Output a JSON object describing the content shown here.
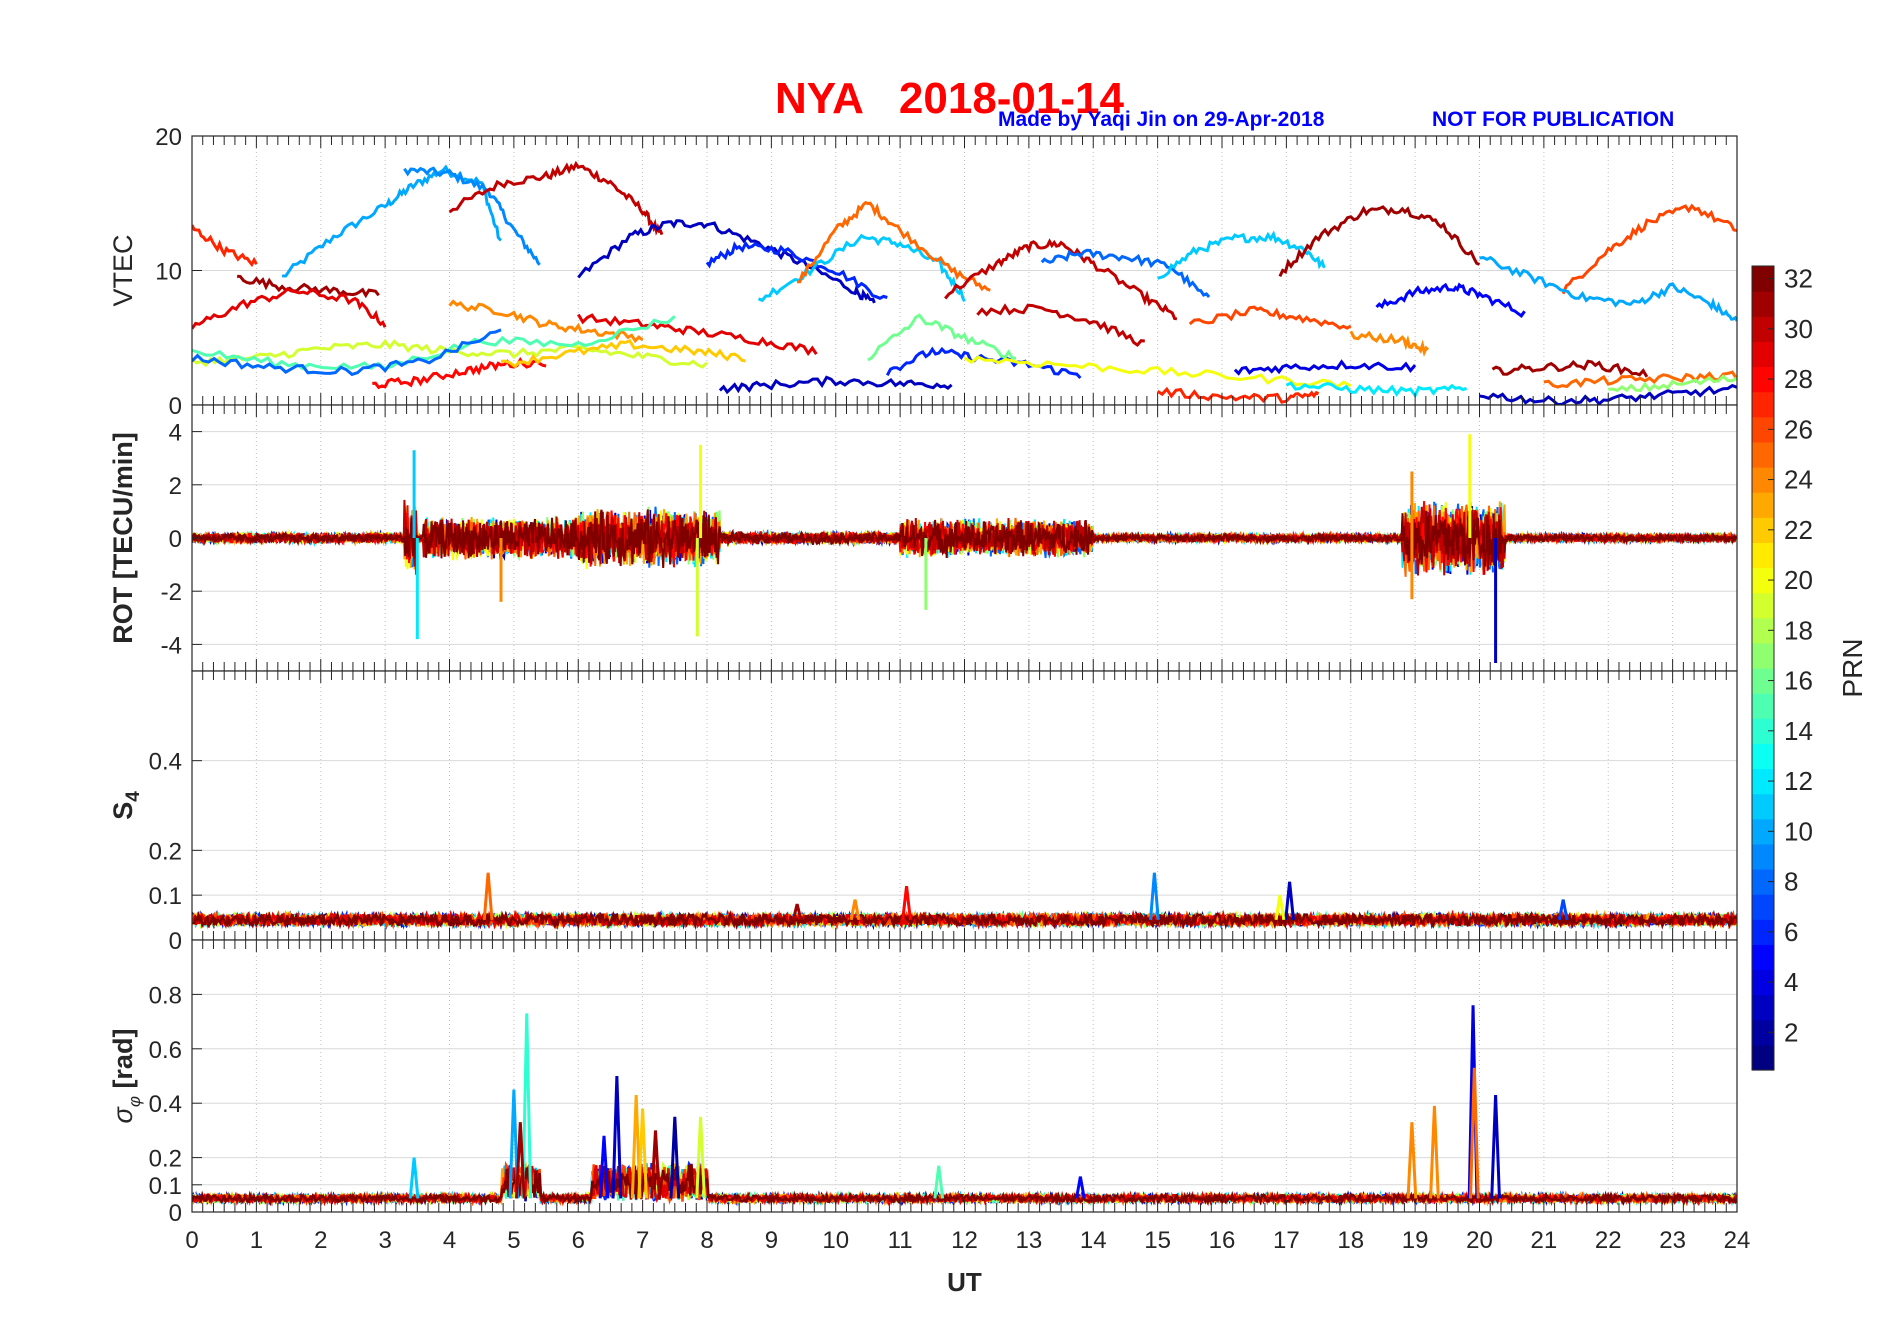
{
  "figure": {
    "title": "NYA   2018-01-14",
    "credit": "Made by Yaqi Jin on 29-Apr-2018",
    "notice": "NOT FOR PUBLICATION"
  },
  "colors": {
    "title": "#ff0000",
    "credit": "#0000ff",
    "axis": "#262626",
    "grid": "#d9d9d9"
  },
  "chart_data": [
    {
      "type": "line",
      "ylabel": "VTEC",
      "xlim": [
        0,
        24
      ],
      "ylim": [
        0,
        20
      ],
      "yticks": [
        0,
        10,
        20
      ],
      "grid": "vertical dotted",
      "series_note": "one trace per PRN, colored by PRN",
      "series": [
        {
          "prn": 10,
          "x": [
            1.4,
            2.2,
            3.0,
            3.4,
            3.9,
            4.5,
            4.8
          ],
          "y": [
            9.5,
            12.5,
            14.8,
            16.2,
            17.5,
            16.5,
            12
          ]
        },
        {
          "prn": 9,
          "x": [
            3.3,
            4.0,
            4.6,
            5.0,
            5.4
          ],
          "y": [
            17.5,
            17.2,
            16,
            13,
            10.5
          ]
        },
        {
          "prn": 30,
          "x": [
            4.0,
            4.8,
            5.5,
            6.0,
            6.5,
            7.0,
            7.3
          ],
          "y": [
            14.5,
            16.5,
            17,
            17.8,
            16.5,
            14.5,
            12.5
          ]
        },
        {
          "prn": 3,
          "x": [
            6.0,
            6.8,
            7.4,
            8.0,
            8.8,
            9.5,
            10.3,
            10.6
          ],
          "y": [
            9.5,
            12.5,
            13.5,
            13.5,
            12,
            10.5,
            8.5,
            7.5
          ]
        },
        {
          "prn": 6,
          "x": [
            8.0,
            8.5,
            9.2,
            10.0,
            10.8
          ],
          "y": [
            10.5,
            11.8,
            11.5,
            10,
            7.8
          ]
        },
        {
          "prn": 11,
          "x": [
            8.8,
            9.6,
            10.4,
            11.0,
            11.6,
            12.0
          ],
          "y": [
            7.8,
            10,
            12.5,
            12,
            10.5,
            8
          ]
        },
        {
          "prn": 25,
          "x": [
            9.4,
            10.0,
            10.5,
            11.0,
            11.8,
            12.4
          ],
          "y": [
            9,
            13,
            15,
            13,
            10,
            8.5
          ]
        },
        {
          "prn": 30,
          "x": [
            11.7,
            12.5,
            13.0,
            13.5,
            14.0,
            14.8,
            15.3
          ],
          "y": [
            8.2,
            10.5,
            11.8,
            12,
            10.5,
            8,
            6.5
          ]
        },
        {
          "prn": 8,
          "x": [
            13.2,
            13.8,
            14.5,
            15.2,
            15.8
          ],
          "y": [
            10.5,
            11.3,
            11,
            10.3,
            7.8
          ]
        },
        {
          "prn": 11,
          "x": [
            15.0,
            15.6,
            16.2,
            16.8,
            17.3,
            17.6
          ],
          "y": [
            9.5,
            11.5,
            12.4,
            12.5,
            11.5,
            10.2
          ]
        },
        {
          "prn": 31,
          "x": [
            16.9,
            17.5,
            18.2,
            18.8,
            19.4,
            20.0
          ],
          "y": [
            9.8,
            12.5,
            14.4,
            14.6,
            13.5,
            10.5
          ]
        },
        {
          "prn": 5,
          "x": [
            18.4,
            19.0,
            19.6,
            20.0,
            20.7
          ],
          "y": [
            7.2,
            8.4,
            8.8,
            8.2,
            6.8
          ]
        },
        {
          "prn": 26,
          "x": [
            21.3,
            22.0,
            22.6,
            23.3,
            24.0
          ],
          "y": [
            8.5,
            11.5,
            13.5,
            14.8,
            13.0
          ]
        },
        {
          "prn": 10,
          "x": [
            20.0,
            20.8,
            21.6,
            22.4,
            23.0,
            23.6,
            24.0
          ],
          "y": [
            11,
            9.5,
            8,
            7.5,
            8.8,
            7.5,
            6.2
          ]
        },
        {
          "prn": 27,
          "x": [
            0.0,
            0.5,
            1.0
          ],
          "y": [
            13.2,
            11.5,
            10.5
          ]
        },
        {
          "prn": 31,
          "x": [
            0.7,
            1.4,
            2.2,
            2.9
          ],
          "y": [
            9.5,
            8.8,
            8.5,
            8.2
          ]
        },
        {
          "prn": 29,
          "x": [
            0.0,
            0.8,
            1.6,
            2.5,
            3.0
          ],
          "y": [
            5.8,
            7.5,
            8.5,
            7.8,
            6.0
          ]
        },
        {
          "prn": 24,
          "x": [
            4.0,
            4.8,
            5.5,
            6.2,
            7.0
          ],
          "y": [
            7.5,
            7.0,
            6.0,
            5.5,
            5.0
          ]
        },
        {
          "prn": 29,
          "x": [
            6.0,
            7.0,
            7.8,
            8.8,
            9.7
          ],
          "y": [
            6.5,
            6.0,
            5.5,
            4.8,
            4.0
          ]
        },
        {
          "prn": 30,
          "x": [
            12.2,
            13.2,
            14.0,
            14.8
          ],
          "y": [
            7.0,
            7.2,
            6.2,
            4.5
          ]
        },
        {
          "prn": 26,
          "x": [
            15.5,
            16.5,
            17.2,
            18.0
          ],
          "y": [
            6.0,
            7.0,
            6.5,
            5.8
          ]
        },
        {
          "prn": 24,
          "x": [
            18.0,
            18.8,
            19.2
          ],
          "y": [
            5.2,
            4.8,
            4.0
          ]
        },
        {
          "prn": 19,
          "x": [
            0.0,
            1.0,
            2.0,
            3.0,
            4.0,
            5.0,
            6.0,
            7.0,
            8.0
          ],
          "y": [
            3.2,
            3.5,
            4.2,
            4.5,
            4.0,
            3.8,
            4.2,
            3.6,
            3.0
          ]
        },
        {
          "prn": 15,
          "x": [
            0.0,
            1.5,
            3.0,
            4.5,
            6.0,
            7.5
          ],
          "y": [
            4.0,
            3.0,
            2.8,
            4.8,
            4.5,
            6.5
          ]
        },
        {
          "prn": 8,
          "x": [
            0.0,
            1.2,
            2.4,
            3.6,
            4.8
          ],
          "y": [
            3.5,
            2.8,
            2.5,
            3.2,
            5.5
          ]
        },
        {
          "prn": 28,
          "x": [
            2.8,
            3.5,
            4.2,
            4.8,
            5.5
          ],
          "y": [
            1.5,
            1.8,
            2.5,
            3.0,
            3.2
          ]
        },
        {
          "prn": 22,
          "x": [
            4.8,
            5.8,
            6.8,
            7.8,
            8.6
          ],
          "y": [
            3.0,
            3.8,
            4.5,
            4.0,
            3.5
          ]
        },
        {
          "prn": 3,
          "x": [
            8.2,
            9.0,
            10.0,
            11.0,
            11.8
          ],
          "y": [
            1.2,
            1.5,
            1.8,
            1.6,
            1.5
          ]
        },
        {
          "prn": 6,
          "x": [
            10.8,
            11.5,
            12.2,
            13.0,
            13.8
          ],
          "y": [
            2.5,
            4.0,
            3.5,
            3.0,
            2.2
          ]
        },
        {
          "prn": 16,
          "x": [
            10.5,
            11.3,
            12.0,
            12.8
          ],
          "y": [
            3.5,
            6.5,
            5.0,
            3.5
          ]
        },
        {
          "prn": 20,
          "x": [
            12.0,
            13.5,
            15.0,
            16.5,
            18.0
          ],
          "y": [
            3.5,
            3.0,
            2.5,
            2.0,
            1.5
          ]
        },
        {
          "prn": 27,
          "x": [
            15.0,
            16.0,
            17.0,
            17.5
          ],
          "y": [
            1.0,
            0.6,
            0.5,
            0.8
          ]
        },
        {
          "prn": 4,
          "x": [
            16.2,
            17.0,
            18.0,
            19.0
          ],
          "y": [
            2.5,
            2.8,
            3.0,
            2.8
          ]
        },
        {
          "prn": 12,
          "x": [
            17.0,
            18.0,
            19.0,
            19.8
          ],
          "y": [
            1.5,
            1.2,
            1.0,
            1.2
          ]
        },
        {
          "prn": 3,
          "x": [
            20.0,
            21.0,
            22.0,
            23.0,
            24.0
          ],
          "y": [
            0.8,
            0.3,
            0.4,
            0.8,
            1.2
          ]
        },
        {
          "prn": 31,
          "x": [
            20.2,
            21.0,
            21.8,
            22.6
          ],
          "y": [
            2.5,
            2.8,
            3.0,
            2.3
          ]
        },
        {
          "prn": 25,
          "x": [
            21.0,
            22.0,
            23.0,
            24.0
          ],
          "y": [
            1.5,
            1.8,
            2.0,
            2.2
          ]
        },
        {
          "prn": 17,
          "x": [
            22.0,
            23.0,
            24.0
          ],
          "y": [
            1.0,
            1.5,
            2.0
          ]
        }
      ]
    },
    {
      "type": "line",
      "ylabel": "ROT [TECU/min]",
      "xlim": [
        0,
        24
      ],
      "ylim": [
        -5,
        5
      ],
      "yticks": [
        -4,
        -2,
        0,
        2,
        4
      ],
      "grid": "vertical dotted",
      "series_note": "noisy traces per PRN centred on 0",
      "activity_windows": [
        {
          "x": [
            0,
            3.3
          ],
          "amp": 0.5
        },
        {
          "x": [
            3.3,
            3.5
          ],
          "amp": 3.5
        },
        {
          "x": [
            3.6,
            6.0
          ],
          "amp": 2.0
        },
        {
          "x": [
            6.0,
            8.2
          ],
          "amp": 2.8
        },
        {
          "x": [
            8.2,
            11.0
          ],
          "amp": 0.6
        },
        {
          "x": [
            11.0,
            14.0
          ],
          "amp": 1.8
        },
        {
          "x": [
            14.0,
            18.8
          ],
          "amp": 0.4
        },
        {
          "x": [
            18.8,
            20.4
          ],
          "amp": 3.5
        },
        {
          "x": [
            20.4,
            24
          ],
          "amp": 0.4
        }
      ],
      "spikes": [
        {
          "x": 3.45,
          "y": 3.3,
          "prn": 11
        },
        {
          "x": 3.5,
          "y": -3.8,
          "prn": 12
        },
        {
          "x": 7.85,
          "y": -3.7,
          "prn": 19
        },
        {
          "x": 7.9,
          "y": 3.5,
          "prn": 20
        },
        {
          "x": 18.95,
          "y": 2.5,
          "prn": 24
        },
        {
          "x": 18.95,
          "y": -2.3,
          "prn": 24
        },
        {
          "x": 19.85,
          "y": 3.9,
          "prn": 20
        },
        {
          "x": 20.25,
          "y": -4.7,
          "prn": 3
        },
        {
          "x": 11.4,
          "y": -2.7,
          "prn": 17
        },
        {
          "x": 4.8,
          "y": -2.4,
          "prn": 24
        }
      ]
    },
    {
      "type": "line",
      "ylabel": "S4",
      "xlim": [
        0,
        24
      ],
      "ylim": [
        0,
        0.6
      ],
      "yticks": [
        0,
        0.1,
        0.2,
        0.4
      ],
      "grid": "horizontal + vertical dotted",
      "baseline": 0.045,
      "spikes": [
        {
          "x": 4.6,
          "y": 0.15,
          "prn": 25
        },
        {
          "x": 11.1,
          "y": 0.12,
          "prn": 28
        },
        {
          "x": 14.95,
          "y": 0.15,
          "prn": 9
        },
        {
          "x": 17.05,
          "y": 0.13,
          "prn": 3
        },
        {
          "x": 16.9,
          "y": 0.1,
          "prn": 20
        },
        {
          "x": 21.3,
          "y": 0.09,
          "prn": 7
        },
        {
          "x": 10.3,
          "y": 0.09,
          "prn": 24
        },
        {
          "x": 9.4,
          "y": 0.08,
          "prn": 31
        }
      ]
    },
    {
      "type": "line",
      "ylabel": "σφ [rad]",
      "xlim": [
        0,
        24
      ],
      "ylim": [
        0,
        1
      ],
      "yticks": [
        0,
        0.1,
        0.2,
        0.4,
        0.6,
        0.8
      ],
      "grid": "horizontal + vertical dotted",
      "xlabel": "UT",
      "xticks": [
        0,
        1,
        2,
        3,
        4,
        5,
        6,
        7,
        8,
        9,
        10,
        11,
        12,
        13,
        14,
        15,
        16,
        17,
        18,
        19,
        20,
        21,
        22,
        23,
        24
      ],
      "baseline": 0.05,
      "spikes": [
        {
          "x": 3.45,
          "y": 0.2,
          "prn": 11
        },
        {
          "x": 5.0,
          "y": 0.45,
          "prn": 10
        },
        {
          "x": 5.2,
          "y": 0.73,
          "prn": 14
        },
        {
          "x": 5.1,
          "y": 0.33,
          "prn": 31
        },
        {
          "x": 6.6,
          "y": 0.5,
          "prn": 3
        },
        {
          "x": 6.9,
          "y": 0.43,
          "prn": 23
        },
        {
          "x": 7.0,
          "y": 0.38,
          "prn": 22
        },
        {
          "x": 7.5,
          "y": 0.35,
          "prn": 2
        },
        {
          "x": 7.9,
          "y": 0.35,
          "prn": 19
        },
        {
          "x": 7.2,
          "y": 0.3,
          "prn": 31
        },
        {
          "x": 6.4,
          "y": 0.28,
          "prn": 5
        },
        {
          "x": 18.95,
          "y": 0.33,
          "prn": 24
        },
        {
          "x": 19.3,
          "y": 0.39,
          "prn": 24
        },
        {
          "x": 19.9,
          "y": 0.76,
          "prn": 4
        },
        {
          "x": 19.92,
          "y": 0.53,
          "prn": 25
        },
        {
          "x": 20.25,
          "y": 0.43,
          "prn": 3
        },
        {
          "x": 11.6,
          "y": 0.17,
          "prn": 15
        },
        {
          "x": 13.8,
          "y": 0.13,
          "prn": 5
        }
      ]
    }
  ],
  "colorbar": {
    "label": "PRN",
    "range": [
      1,
      32
    ],
    "ticks": [
      2,
      4,
      6,
      8,
      10,
      12,
      14,
      16,
      18,
      20,
      22,
      24,
      26,
      28,
      30,
      32
    ],
    "colormap": "jet"
  }
}
